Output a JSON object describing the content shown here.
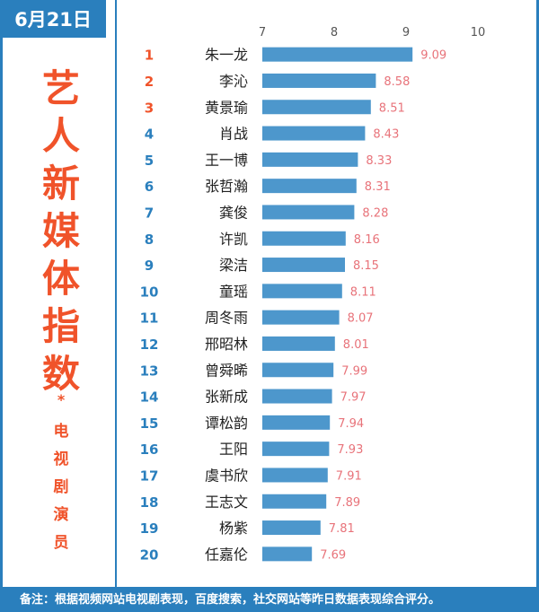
{
  "date": "6月21日",
  "side_title": "艺人新媒体指数",
  "side_star": "*",
  "side_subtitle": "电视剧演员",
  "footer_note": "备注：根据视频网站电视剧表现，百度搜索，社交网站等昨日数据表现综合评分。",
  "colors": {
    "accent": "#2a7fbd",
    "bar": "#4d97cc",
    "rank_top": "#f0532a",
    "rank_rest": "#2a7fbd",
    "value": "#e8737a"
  },
  "chart_data": {
    "type": "bar",
    "orientation": "horizontal",
    "xlim": [
      7,
      10
    ],
    "ticks": [
      7,
      8,
      9,
      10
    ],
    "ranks": [
      1,
      2,
      3,
      4,
      5,
      6,
      7,
      8,
      9,
      10,
      11,
      12,
      13,
      14,
      15,
      16,
      17,
      18,
      19,
      20
    ],
    "categories": [
      "朱一龙",
      "李沁",
      "黄景瑜",
      "肖战",
      "王一博",
      "张哲瀚",
      "龚俊",
      "许凯",
      "梁洁",
      "童瑶",
      "周冬雨",
      "邢昭林",
      "曾舜晞",
      "张新成",
      "谭松韵",
      "王阳",
      "虞书欣",
      "王志文",
      "杨紫",
      "任嘉伦"
    ],
    "values": [
      9.09,
      8.58,
      8.51,
      8.43,
      8.33,
      8.31,
      8.28,
      8.16,
      8.15,
      8.11,
      8.07,
      8.01,
      7.99,
      7.97,
      7.94,
      7.93,
      7.91,
      7.89,
      7.81,
      7.69
    ],
    "grid": false
  }
}
